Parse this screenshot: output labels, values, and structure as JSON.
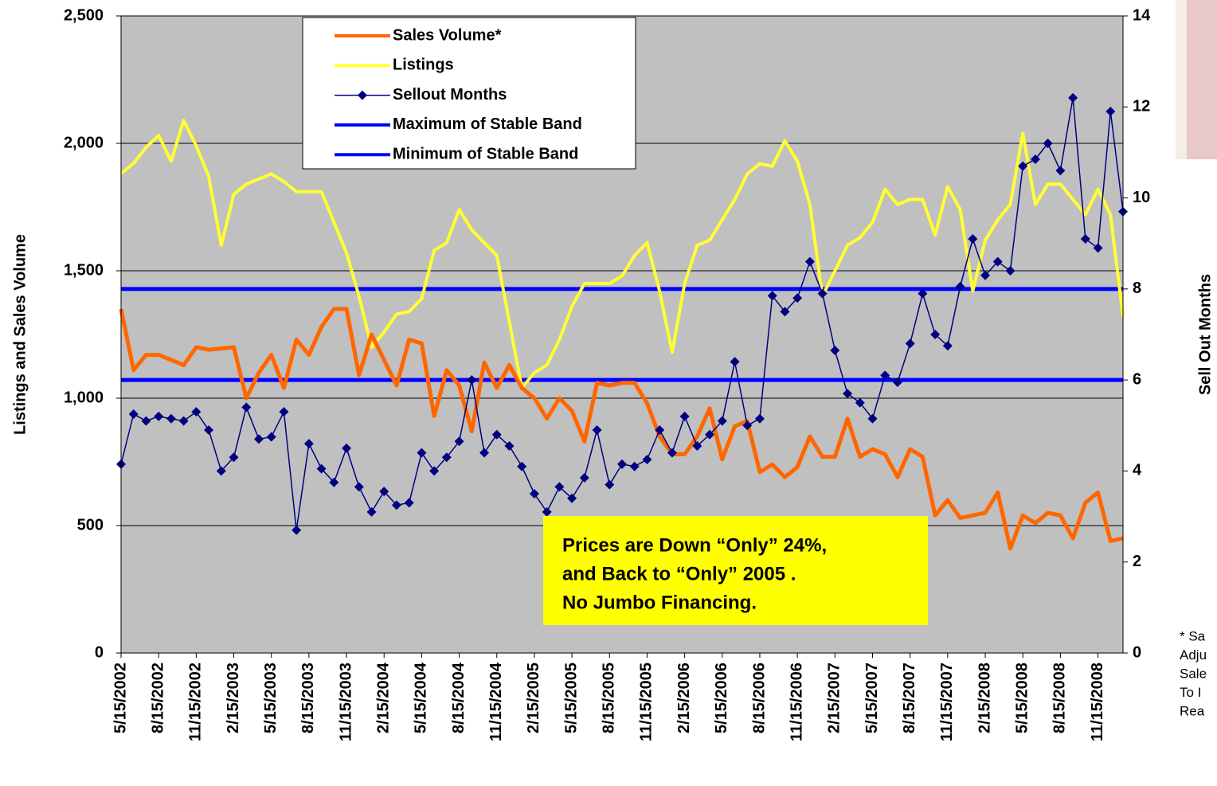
{
  "chart_data": {
    "type": "line",
    "categories": [
      "5/15/2002",
      null,
      null,
      "8/15/2002",
      null,
      null,
      "11/15/2002",
      null,
      null,
      "2/15/2003",
      null,
      null,
      "5/15/2003",
      null,
      null,
      "8/15/2003",
      null,
      null,
      "11/15/2003",
      null,
      null,
      "2/15/2004",
      null,
      null,
      "5/15/2004",
      null,
      null,
      "8/15/2004",
      null,
      null,
      "11/15/2004",
      null,
      null,
      "2/15/2005",
      null,
      null,
      "5/15/2005",
      null,
      null,
      "8/15/2005",
      null,
      null,
      "11/15/2005",
      null,
      null,
      "2/15/2006",
      null,
      null,
      "5/15/2006",
      null,
      null,
      "8/15/2006",
      null,
      null,
      "11/15/2006",
      null,
      null,
      "2/15/2007",
      null,
      null,
      "5/15/2007",
      null,
      null,
      "8/15/2007",
      null,
      null,
      "11/15/2007",
      null,
      null,
      "2/15/2008",
      null,
      null,
      "5/15/2008",
      null,
      null,
      "8/15/2008",
      null,
      null,
      "11/15/2008",
      null,
      null
    ],
    "series": [
      {
        "name": "Sales Volume*",
        "color": "#ff6600",
        "values": [
          1350,
          1110,
          1170,
          1170,
          1150,
          1130,
          1200,
          1190,
          1195,
          1200,
          1000,
          1100,
          1170,
          1040,
          1230,
          1170,
          1280,
          1350,
          1350,
          1090,
          1250,
          1150,
          1050,
          1230,
          1215,
          930,
          1110,
          1050,
          870,
          1140,
          1040,
          1130,
          1040,
          1000,
          920,
          1000,
          950,
          830,
          1060,
          1050,
          1060,
          1060,
          980,
          850,
          780,
          780,
          850,
          960,
          760,
          890,
          910,
          710,
          740,
          690,
          730,
          850,
          770,
          770,
          920,
          770,
          800,
          780,
          690,
          800,
          770,
          540,
          600,
          530,
          540,
          550,
          630,
          410,
          540,
          510,
          550,
          540,
          450,
          590,
          630,
          440,
          450
        ]
      },
      {
        "name": "Listings",
        "color": "#ffff33",
        "values": [
          1881,
          1922,
          1984,
          2031,
          1930,
          2090,
          1990,
          1870,
          1600,
          1800,
          1840,
          1860,
          1880,
          1850,
          1810,
          1810,
          1810,
          1690,
          1570,
          1400,
          1200,
          1260,
          1330,
          1340,
          1390,
          1580,
          1610,
          1740,
          1660,
          1610,
          1560,
          1300,
          1040,
          1100,
          1130,
          1230,
          1360,
          1450,
          1450,
          1450,
          1480,
          1560,
          1610,
          1420,
          1180,
          1450,
          1600,
          1620,
          1700,
          1780,
          1880,
          1920,
          1910,
          2010,
          1930,
          1760,
          1400,
          1500,
          1600,
          1630,
          1690,
          1820,
          1760,
          1780,
          1780,
          1640,
          1830,
          1740,
          1420,
          1620,
          1700,
          1760,
          2040,
          1760,
          1840,
          1840,
          1780,
          1720,
          1820,
          1720,
          1320
        ]
      },
      {
        "name": "Sellout Months",
        "color": "#000080",
        "axis": "y2",
        "marker": "diamond",
        "values": [
          4.15,
          5.25,
          5.1,
          5.2,
          5.15,
          5.1,
          5.3,
          4.9,
          4.0,
          4.3,
          5.4,
          4.7,
          4.75,
          5.3,
          2.7,
          4.6,
          4.05,
          3.75,
          4.5,
          3.65,
          3.1,
          3.55,
          3.25,
          3.3,
          4.4,
          4.0,
          4.3,
          4.65,
          6.0,
          4.4,
          4.8,
          4.55,
          4.1,
          3.5,
          3.1,
          3.65,
          3.4,
          3.85,
          4.9,
          3.7,
          4.15,
          4.1,
          4.25,
          4.9,
          4.4,
          5.2,
          4.55,
          4.8,
          5.1,
          6.4,
          5.0,
          5.15,
          7.85,
          7.5,
          7.8,
          8.6,
          7.9,
          6.65,
          5.7,
          5.5,
          5.15,
          6.1,
          5.95,
          6.8,
          7.9,
          7.0,
          6.75,
          8.05,
          9.1,
          8.3,
          8.6,
          8.4,
          10.7,
          10.85,
          11.2,
          10.6,
          12.2,
          9.1,
          8.9,
          11.9,
          9.7
        ]
      }
    ],
    "hlines": [
      {
        "name": "Maximum of Stable Band",
        "color": "#0000ff",
        "axis": "y2",
        "value": 8
      },
      {
        "name": "Minimum of Stable Band",
        "color": "#0000ff",
        "axis": "y2",
        "value": 6
      }
    ],
    "ylabel": "Listings and Sales Volume",
    "y2label": "Sell Out Months",
    "ylim": [
      0,
      2500
    ],
    "yticks": [
      0,
      500,
      {
        "value": 1000,
        "label": "1,000"
      },
      {
        "value": 1500,
        "label": "1,500"
      },
      {
        "value": 2000,
        "label": "2,000"
      },
      {
        "value": 2500,
        "label": "2,500"
      }
    ],
    "y2lim": [
      0,
      14
    ],
    "y2ticks": [
      0,
      2,
      4,
      6,
      8,
      10,
      12,
      14
    ],
    "grid": true,
    "legend": "top",
    "annotation": [
      "Prices are Down “Only” 24%,",
      "and Back to “Only” 2005 .",
      "No Jumbo Financing."
    ],
    "footnote": [
      "* Sa",
      "Adju",
      "Sale",
      "To I",
      "Rea"
    ]
  }
}
